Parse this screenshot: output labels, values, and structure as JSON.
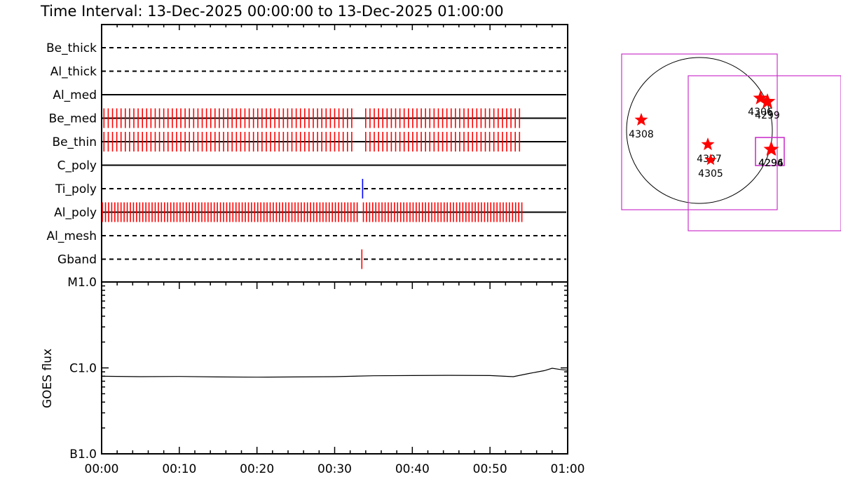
{
  "chart_data": [
    {
      "type": "timeline",
      "title": "Time Interval: 13-Dec-2025 00:00:00 to 13-Dec-2025 01:00:00",
      "x_range_minutes": [
        0,
        60
      ],
      "x_tick_labels": [
        "00:00",
        "00:10",
        "00:20",
        "00:30",
        "00:40",
        "00:50",
        "01:00"
      ],
      "rows": [
        {
          "label": "Be_thick",
          "style": "dashed",
          "marks": []
        },
        {
          "label": "Al_thick",
          "style": "dashed",
          "marks": []
        },
        {
          "label": "Al_med",
          "style": "solid",
          "marks": []
        },
        {
          "label": "Be_med",
          "style": "solid",
          "mark_color": "#ff0000",
          "marks": [
            [
              0.3,
              32.5,
              0.55
            ],
            [
              34.0,
              53.8,
              0.55
            ]
          ]
        },
        {
          "label": "Be_thin",
          "style": "solid",
          "mark_color": "#ff0000",
          "marks": [
            [
              0.3,
              32.5,
              0.55
            ],
            [
              34.0,
              53.8,
              0.55
            ]
          ]
        },
        {
          "label": "C_poly",
          "style": "solid",
          "marks": []
        },
        {
          "label": "Ti_poly",
          "style": "dashed",
          "mark_color": "#0000ff",
          "marks": [
            [
              33.6,
              33.6,
              1
            ]
          ]
        },
        {
          "label": "Al_poly",
          "style": "solid",
          "mark_color": "#ff0000",
          "marks": [
            [
              0.1,
              33.2,
              0.4
            ],
            [
              33.7,
              54.1,
              0.4
            ]
          ]
        },
        {
          "label": "Al_mesh",
          "style": "dashed",
          "marks": []
        },
        {
          "label": "Gband",
          "style": "dashed",
          "mark_color": "#ff0000",
          "marks": [
            [
              33.5,
              33.5,
              1
            ]
          ]
        }
      ]
    },
    {
      "type": "line",
      "ylabel": "GOES flux",
      "y_scale": "log",
      "y_tick_labels": [
        "B1.0",
        "C1.0",
        "M1.0"
      ],
      "ylim": [
        1e-07,
        1e-05
      ],
      "x_range_minutes": [
        0,
        60
      ],
      "x_tick_labels": [
        "00:00",
        "00:10",
        "00:20",
        "00:30",
        "00:40",
        "00:50",
        "01:00"
      ],
      "series": [
        {
          "values": [
            [
              0,
              8e-07
            ],
            [
              5,
              7.9e-07
            ],
            [
              10,
              7.95e-07
            ],
            [
              15,
              7.85e-07
            ],
            [
              20,
              7.8e-07
            ],
            [
              25,
              7.85e-07
            ],
            [
              30,
              7.9e-07
            ],
            [
              35,
              8.1e-07
            ],
            [
              40,
              8.15e-07
            ],
            [
              45,
              8.2e-07
            ],
            [
              50,
              8.15e-07
            ],
            [
              53,
              7.9e-07
            ],
            [
              55,
              8.6e-07
            ],
            [
              57,
              9.3e-07
            ],
            [
              58,
              9.9e-07
            ],
            [
              59,
              9.6e-07
            ],
            [
              60,
              9.4e-07
            ]
          ]
        }
      ]
    }
  ],
  "sun_map": {
    "outer_box_color": "#cc33cc",
    "star_color": "#ff0000",
    "regions": [
      {
        "label": "4308"
      },
      {
        "label": "4306"
      },
      {
        "label": "4299"
      },
      {
        "label": "4307"
      },
      {
        "label": "4305"
      },
      {
        "label": "4296"
      },
      {
        "label": "4294"
      }
    ]
  }
}
